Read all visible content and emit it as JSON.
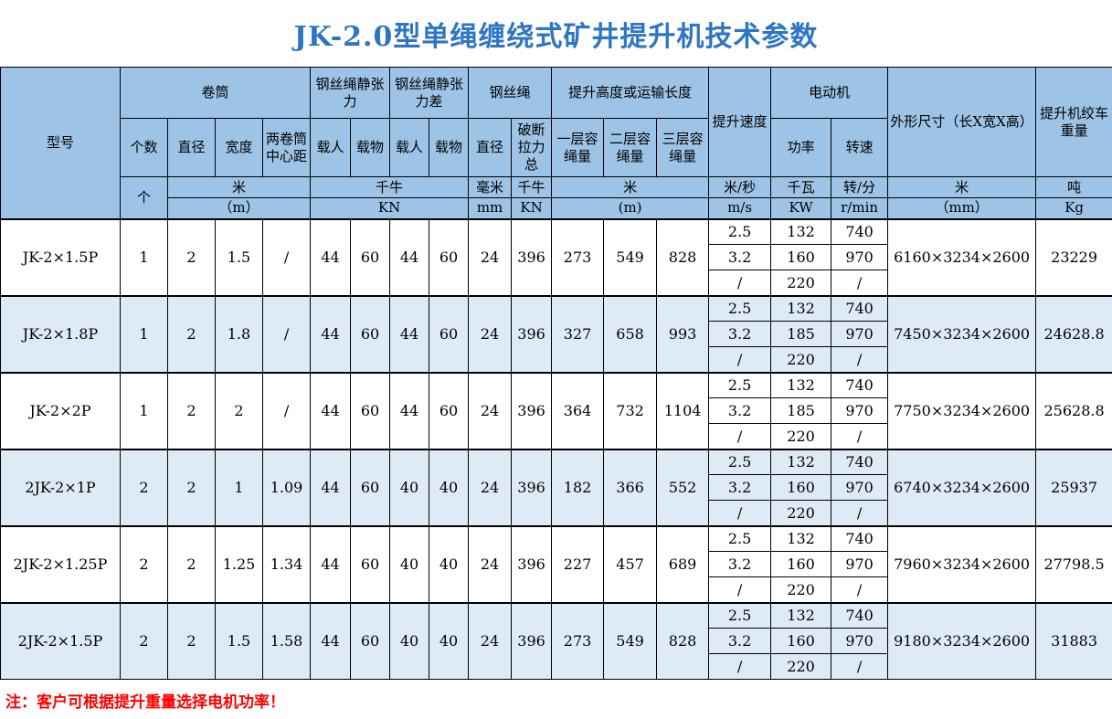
{
  "title": "JK-2.0型单绳缠绕式矿井提升机技术参数",
  "note": "注：客户可根据提升重量选择电机功率！",
  "colors": {
    "header_bg": "#9DC3E6",
    "row_alt_bg": "#DEEBF7",
    "row_bg": "#FFFFFF",
    "title_color": "#2E75C3",
    "note_color": "#FF0000",
    "border_color": "#000000"
  },
  "header": {
    "model": "型号",
    "drum": "卷筒",
    "static_tension": "钢丝绳静张力",
    "tension_diff": "钢丝绳静张力差",
    "wire_rope": "钢丝绳",
    "lift_height": "提升高度或运输长度",
    "lift_speed": "提升速度",
    "motor": "电动机",
    "dimensions": "外形尺寸（长X宽X高）",
    "hoist_weight": "提升机绞车重量",
    "count": "个数",
    "diameter": "直径",
    "width": "宽度",
    "center_distance": "两卷筒中心距",
    "load_person": "载人",
    "load_cargo": "载物",
    "rope_diameter": "直径",
    "breaking_force": "破断拉力总",
    "layer1": "一层容绳量",
    "layer2": "二层容绳量",
    "layer3": "三层容绳量",
    "power": "功率",
    "rpm": "转速"
  },
  "units": {
    "count_cn": "个",
    "meter_cn": "米",
    "meter_en": "（m）",
    "kn_cn": "千牛",
    "kn_en": "KN",
    "mm_cn": "毫米",
    "mm_en": "mm",
    "kn2_cn": "千牛",
    "kn2_en": "KN",
    "meter2_cn": "米",
    "meter2_en": "(m)",
    "speed_cn": "米/秒",
    "speed_en": "m/s",
    "kw_cn": "千瓦",
    "kw_en": "KW",
    "rpm_cn": "转/分",
    "rpm_en": "r/min",
    "dim_cn": "米",
    "dim_en": "（mm）",
    "ton_cn": "吨",
    "ton_en": "Kg"
  },
  "rows": [
    {
      "model": "JK-2×1.5P",
      "drum_count": "1",
      "drum_diameter": "2",
      "drum_width": "1.5",
      "center_distance": "/",
      "tension_person": "44",
      "tension_cargo": "60",
      "diff_person": "44",
      "diff_cargo": "60",
      "rope_diameter": "24",
      "breaking_force": "396",
      "layer1": "273",
      "layer2": "549",
      "layer3": "828",
      "motor_rows": [
        {
          "speed": "2.5",
          "power": "132",
          "rpm": "740"
        },
        {
          "speed": "3.2",
          "power": "160",
          "rpm": "970"
        },
        {
          "speed": "/",
          "power": "220",
          "rpm": "/"
        }
      ],
      "dimensions": "6160×3234×2600",
      "weight": "23229"
    },
    {
      "model": "JK-2×1.8P",
      "drum_count": "1",
      "drum_diameter": "2",
      "drum_width": "1.8",
      "center_distance": "/",
      "tension_person": "44",
      "tension_cargo": "60",
      "diff_person": "44",
      "diff_cargo": "60",
      "rope_diameter": "24",
      "breaking_force": "396",
      "layer1": "327",
      "layer2": "658",
      "layer3": "993",
      "motor_rows": [
        {
          "speed": "2.5",
          "power": "132",
          "rpm": "740"
        },
        {
          "speed": "3.2",
          "power": "185",
          "rpm": "970"
        },
        {
          "speed": "/",
          "power": "220",
          "rpm": "/"
        }
      ],
      "dimensions": "7450×3234×2600",
      "weight": "24628.8"
    },
    {
      "model": "JK-2×2P",
      "drum_count": "1",
      "drum_diameter": "2",
      "drum_width": "2",
      "center_distance": "/",
      "tension_person": "44",
      "tension_cargo": "60",
      "diff_person": "44",
      "diff_cargo": "60",
      "rope_diameter": "24",
      "breaking_force": "396",
      "layer1": "364",
      "layer2": "732",
      "layer3": "1104",
      "motor_rows": [
        {
          "speed": "2.5",
          "power": "132",
          "rpm": "740"
        },
        {
          "speed": "3.2",
          "power": "185",
          "rpm": "970"
        },
        {
          "speed": "/",
          "power": "220",
          "rpm": "/"
        }
      ],
      "dimensions": "7750×3234×2600",
      "weight": "25628.8"
    },
    {
      "model": "2JK-2×1P",
      "drum_count": "2",
      "drum_diameter": "2",
      "drum_width": "1",
      "center_distance": "1.09",
      "tension_person": "44",
      "tension_cargo": "60",
      "diff_person": "40",
      "diff_cargo": "40",
      "rope_diameter": "24",
      "breaking_force": "396",
      "layer1": "182",
      "layer2": "366",
      "layer3": "552",
      "motor_rows": [
        {
          "speed": "2.5",
          "power": "132",
          "rpm": "740"
        },
        {
          "speed": "3.2",
          "power": "160",
          "rpm": "970"
        },
        {
          "speed": "/",
          "power": "220",
          "rpm": "/"
        }
      ],
      "dimensions": "6740×3234×2600",
      "weight": "25937"
    },
    {
      "model": "2JK-2×1.25P",
      "drum_count": "2",
      "drum_diameter": "2",
      "drum_width": "1.25",
      "center_distance": "1.34",
      "tension_person": "44",
      "tension_cargo": "60",
      "diff_person": "40",
      "diff_cargo": "40",
      "rope_diameter": "24",
      "breaking_force": "396",
      "layer1": "227",
      "layer2": "457",
      "layer3": "689",
      "motor_rows": [
        {
          "speed": "2.5",
          "power": "132",
          "rpm": "740"
        },
        {
          "speed": "3.2",
          "power": "160",
          "rpm": "970"
        },
        {
          "speed": "/",
          "power": "220",
          "rpm": "/"
        }
      ],
      "dimensions": "7960×3234×2600",
      "weight": "27798.5"
    },
    {
      "model": "2JK-2×1.5P",
      "drum_count": "2",
      "drum_diameter": "2",
      "drum_width": "1.5",
      "center_distance": "1.58",
      "tension_person": "44",
      "tension_cargo": "60",
      "diff_person": "40",
      "diff_cargo": "40",
      "rope_diameter": "24",
      "breaking_force": "396",
      "layer1": "273",
      "layer2": "549",
      "layer3": "828",
      "motor_rows": [
        {
          "speed": "2.5",
          "power": "132",
          "rpm": "740"
        },
        {
          "speed": "3.2",
          "power": "160",
          "rpm": "970"
        },
        {
          "speed": "/",
          "power": "220",
          "rpm": "/"
        }
      ],
      "dimensions": "9180×3234×2600",
      "weight": "31883"
    }
  ]
}
